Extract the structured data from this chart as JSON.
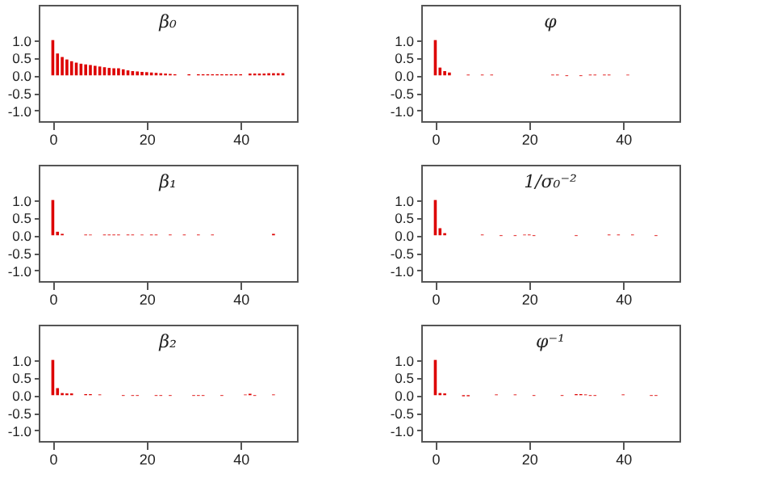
{
  "chart_data": [
    {
      "type": "bar",
      "title": "β₀",
      "color": "#dd0000",
      "grid": false,
      "xlim": [
        -3,
        52
      ],
      "ylim": [
        -1.3,
        2.0
      ],
      "xticks": [
        0,
        20,
        40
      ],
      "yticks": [
        {
          "value": -1,
          "label": "-1.0"
        },
        {
          "value": -0.5,
          "label": "-0.5"
        },
        {
          "value": 0,
          "label": "0.0"
        },
        {
          "value": 0.5,
          "label": "0.5"
        },
        {
          "value": 1,
          "label": "1.0"
        }
      ],
      "x": [
        0,
        1,
        2,
        3,
        4,
        5,
        6,
        7,
        8,
        9,
        10,
        11,
        12,
        13,
        14,
        15,
        16,
        17,
        18,
        19,
        20,
        21,
        22,
        23,
        24,
        25,
        26,
        29,
        31,
        32,
        33,
        34,
        35,
        36,
        37,
        38,
        39,
        40,
        42,
        43,
        44,
        45,
        46,
        47,
        48,
        49
      ],
      "values": [
        1.0,
        0.62,
        0.52,
        0.45,
        0.4,
        0.36,
        0.33,
        0.31,
        0.29,
        0.27,
        0.25,
        0.23,
        0.21,
        0.2,
        0.2,
        0.17,
        0.14,
        0.12,
        0.11,
        0.1,
        0.09,
        0.08,
        0.07,
        0.06,
        0.05,
        0.04,
        0.03,
        0.03,
        0.03,
        0.03,
        0.03,
        0.03,
        0.03,
        0.03,
        0.03,
        0.03,
        0.03,
        0.03,
        0.05,
        0.05,
        0.05,
        0.05,
        0.06,
        0.06,
        0.06,
        0.06
      ]
    },
    {
      "type": "bar",
      "title": "φ",
      "color": "#dd0000",
      "grid": false,
      "xlim": [
        -3,
        52
      ],
      "ylim": [
        -1.3,
        2.0
      ],
      "xticks": [
        0,
        20,
        40
      ],
      "yticks": [
        {
          "value": -1,
          "label": "-1.0"
        },
        {
          "value": -0.5,
          "label": "-0.5"
        },
        {
          "value": 0,
          "label": "0.0"
        },
        {
          "value": 0.5,
          "label": "0.5"
        },
        {
          "value": 1,
          "label": "1.0"
        }
      ],
      "x": [
        0,
        1,
        2,
        3,
        7,
        10,
        12,
        25,
        26,
        28,
        31,
        33,
        34,
        36,
        37,
        41
      ],
      "values": [
        1.0,
        0.22,
        0.12,
        0.08,
        0.02,
        0.02,
        0.02,
        0.02,
        0.02,
        -0.02,
        -0.02,
        0.02,
        0.02,
        0.02,
        0.02,
        0.02
      ]
    },
    {
      "type": "bar",
      "title": "β₁",
      "color": "#dd0000",
      "grid": false,
      "xlim": [
        -3,
        52
      ],
      "ylim": [
        -1.3,
        2.0
      ],
      "xticks": [
        0,
        20,
        40
      ],
      "yticks": [
        {
          "value": -1,
          "label": "-1.0"
        },
        {
          "value": -0.5,
          "label": "-0.5"
        },
        {
          "value": 0,
          "label": "0.0"
        },
        {
          "value": 0.5,
          "label": "0.5"
        },
        {
          "value": 1,
          "label": "1.0"
        }
      ],
      "x": [
        0,
        1,
        2,
        7,
        8,
        11,
        12,
        13,
        14,
        16,
        17,
        19,
        21,
        22,
        25,
        28,
        31,
        34,
        47
      ],
      "values": [
        1.0,
        0.1,
        0.04,
        0.02,
        0.02,
        0.02,
        0.02,
        0.02,
        0.02,
        0.02,
        0.02,
        0.02,
        0.02,
        0.02,
        0.02,
        0.02,
        0.02,
        0.02,
        0.04
      ]
    },
    {
      "type": "bar",
      "title": "1/σ₀⁻²",
      "color": "#dd0000",
      "grid": false,
      "xlim": [
        -3,
        52
      ],
      "ylim": [
        -1.3,
        2.0
      ],
      "xticks": [
        0,
        20,
        40
      ],
      "yticks": [
        {
          "value": -1,
          "label": "-1.0"
        },
        {
          "value": -0.5,
          "label": "-0.5"
        },
        {
          "value": 0,
          "label": "0.0"
        },
        {
          "value": 0.5,
          "label": "0.5"
        },
        {
          "value": 1,
          "label": "1.0"
        }
      ],
      "x": [
        0,
        1,
        2,
        10,
        14,
        17,
        19,
        20,
        21,
        30,
        37,
        39,
        42,
        47
      ],
      "values": [
        1.0,
        0.2,
        0.06,
        0.02,
        -0.02,
        -0.02,
        0.02,
        0.02,
        -0.02,
        -0.02,
        0.02,
        0.02,
        0.02,
        -0.02
      ]
    },
    {
      "type": "bar",
      "title": "β₂",
      "color": "#dd0000",
      "grid": false,
      "xlim": [
        -3,
        52
      ],
      "ylim": [
        -1.3,
        2.0
      ],
      "xticks": [
        0,
        20,
        40
      ],
      "yticks": [
        {
          "value": -1,
          "label": "-1.0"
        },
        {
          "value": -0.5,
          "label": "-0.5"
        },
        {
          "value": 0,
          "label": "0.0"
        },
        {
          "value": 0.5,
          "label": "0.5"
        },
        {
          "value": 1,
          "label": "1.0"
        }
      ],
      "x": [
        0,
        1,
        2,
        3,
        4,
        7,
        8,
        10,
        15,
        17,
        18,
        22,
        23,
        25,
        30,
        31,
        32,
        36,
        41,
        42,
        43,
        47
      ],
      "values": [
        1.0,
        0.2,
        0.06,
        0.05,
        0.05,
        0.03,
        0.03,
        0.02,
        -0.02,
        -0.02,
        -0.02,
        -0.02,
        -0.02,
        -0.02,
        -0.02,
        -0.02,
        -0.02,
        -0.02,
        0.02,
        0.04,
        -0.02,
        0.02
      ]
    },
    {
      "type": "bar",
      "title": "φ⁻¹",
      "color": "#dd0000",
      "grid": false,
      "xlim": [
        -3,
        52
      ],
      "ylim": [
        -1.3,
        2.0
      ],
      "xticks": [
        0,
        20,
        40
      ],
      "yticks": [
        {
          "value": -1,
          "label": "-1.0"
        },
        {
          "value": -0.5,
          "label": "-0.5"
        },
        {
          "value": 0,
          "label": "0.0"
        },
        {
          "value": 0.5,
          "label": "0.5"
        },
        {
          "value": 1,
          "label": "1.0"
        }
      ],
      "x": [
        0,
        1,
        2,
        6,
        7,
        13,
        17,
        21,
        27,
        30,
        31,
        32,
        33,
        34,
        40,
        46,
        47
      ],
      "values": [
        1.0,
        0.06,
        0.05,
        -0.03,
        -0.03,
        0.02,
        0.02,
        -0.02,
        -0.02,
        0.03,
        0.03,
        0.02,
        -0.02,
        -0.02,
        0.02,
        -0.02,
        -0.02
      ]
    }
  ]
}
